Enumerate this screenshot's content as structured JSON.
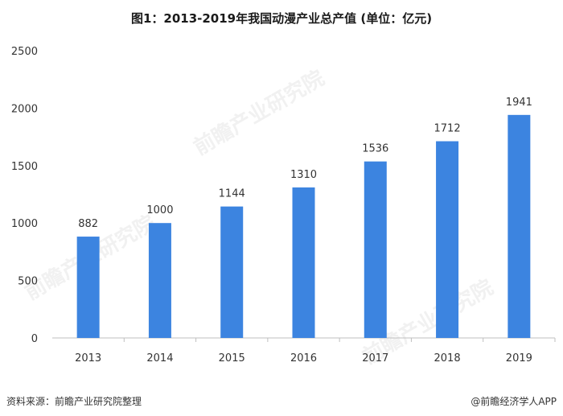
{
  "header": {
    "title": "图1：2013-2019年我国动漫产业总产值 (单位：亿元)"
  },
  "footer": {
    "source": "资料来源：前瞻产业研究院整理",
    "brand": "@前瞻经济学人APP"
  },
  "watermark_text": "前瞻产业研究院",
  "colors": {
    "bar": "#3c84e0",
    "axis": "#bfbfbf"
  },
  "chart_data": {
    "type": "bar",
    "title": "图1：2013-2019年我国动漫产业总产值 (单位：亿元)",
    "categories": [
      "2013",
      "2014",
      "2015",
      "2016",
      "2017",
      "2018",
      "2019"
    ],
    "values": [
      882,
      1000,
      1144,
      1310,
      1536,
      1712,
      1941
    ],
    "ylim": [
      0,
      2500
    ],
    "yticks": [
      0,
      500,
      1000,
      1500,
      2000,
      2500
    ],
    "grid": false,
    "legend": "none"
  }
}
